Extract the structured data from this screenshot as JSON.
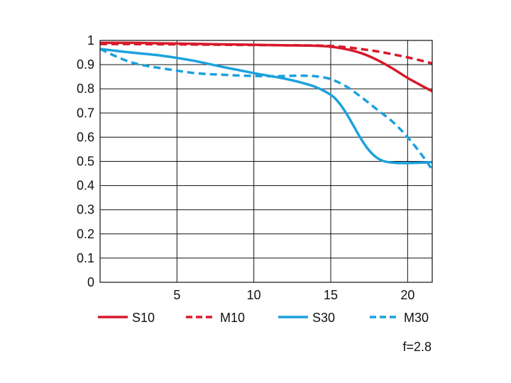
{
  "chart_data": {
    "type": "line",
    "xlim": [
      0,
      21.6
    ],
    "ylim": [
      0,
      1
    ],
    "xticks": [
      5,
      10,
      15,
      20
    ],
    "yticks": [
      0,
      0.1,
      0.2,
      0.3,
      0.4,
      0.5,
      0.6,
      0.7,
      0.8,
      0.9,
      1
    ],
    "xtick_labels": [
      "5",
      "10",
      "15",
      "20"
    ],
    "ytick_labels": [
      "0",
      "0.1",
      "0.2",
      "0.3",
      "0.4",
      "0.5",
      "0.6",
      "0.7",
      "0.8",
      "0.9",
      "1"
    ],
    "grid": true,
    "legend_position": "bottom",
    "annotation": "f=2.8",
    "series": [
      {
        "name": "S10",
        "color": "#d7192b",
        "dash": "solid",
        "x": [
          0,
          2,
          4,
          6,
          8,
          10,
          12,
          14,
          15,
          16,
          17,
          18,
          19,
          20,
          21,
          21.6
        ],
        "y": [
          0.99,
          0.99,
          0.988,
          0.986,
          0.984,
          0.982,
          0.98,
          0.978,
          0.974,
          0.964,
          0.947,
          0.92,
          0.885,
          0.845,
          0.81,
          0.79
        ]
      },
      {
        "name": "M10",
        "color": "#d7192b",
        "dash": "dashed",
        "x": [
          0,
          2,
          4,
          6,
          8,
          10,
          12,
          14,
          15,
          16,
          17,
          18,
          19,
          20,
          21,
          21.6
        ],
        "y": [
          0.985,
          0.985,
          0.984,
          0.983,
          0.982,
          0.981,
          0.98,
          0.979,
          0.977,
          0.972,
          0.964,
          0.955,
          0.943,
          0.93,
          0.915,
          0.905
        ]
      },
      {
        "name": "S30",
        "color": "#1ba1dd",
        "dash": "solid",
        "x": [
          0,
          2,
          4,
          6,
          8,
          10,
          12,
          13,
          14,
          15,
          15.5,
          16,
          16.5,
          17,
          17.5,
          18,
          18.5,
          19,
          19.5,
          20,
          21,
          21.6
        ],
        "y": [
          0.965,
          0.95,
          0.937,
          0.917,
          0.89,
          0.865,
          0.842,
          0.827,
          0.808,
          0.775,
          0.745,
          0.7,
          0.645,
          0.59,
          0.545,
          0.515,
          0.5,
          0.495,
          0.493,
          0.493,
          0.495,
          0.497
        ]
      },
      {
        "name": "M30",
        "color": "#1ba1dd",
        "dash": "dashed",
        "x": [
          0,
          1,
          2,
          3,
          4,
          5,
          6,
          7,
          8,
          9,
          10,
          11,
          12,
          13,
          14,
          15,
          16,
          17,
          18,
          19,
          20,
          21,
          21.6
        ],
        "y": [
          0.965,
          0.935,
          0.91,
          0.895,
          0.885,
          0.875,
          0.866,
          0.861,
          0.858,
          0.855,
          0.853,
          0.852,
          0.853,
          0.854,
          0.852,
          0.84,
          0.81,
          0.765,
          0.715,
          0.665,
          0.6,
          0.52,
          0.465
        ]
      }
    ]
  }
}
